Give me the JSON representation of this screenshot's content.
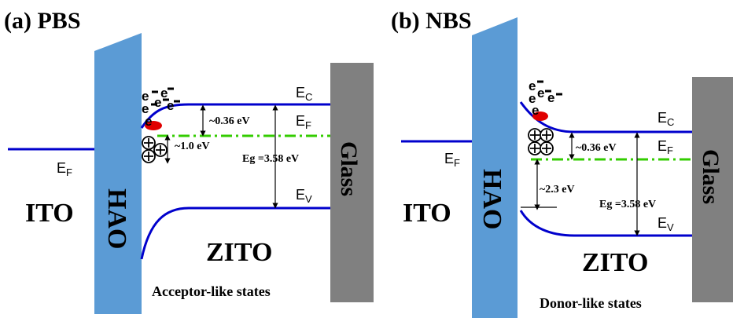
{
  "panels": [
    {
      "title": "(a) PBS",
      "left_material": "ITO",
      "insulator": "HAO",
      "semiconductor": "ZITO",
      "substrate": "Glass",
      "states": "Acceptor-like states",
      "ef_left": {
        "main": "E",
        "sub": "F"
      },
      "ec": {
        "main": "E",
        "sub": "C"
      },
      "ef": {
        "main": "E",
        "sub": "F"
      },
      "ev": {
        "main": "E",
        "sub": "V"
      },
      "gap_labels": [
        "~0.36 eV",
        "~1.0 eV"
      ],
      "eg": "Eg =3.58 eV"
    },
    {
      "title": "(b) NBS",
      "left_material": "ITO",
      "insulator": "HAO",
      "semiconductor": "ZITO",
      "substrate": "Glass",
      "states": "Donor-like states",
      "ef_left": {
        "main": "E",
        "sub": "F"
      },
      "ec": {
        "main": "E",
        "sub": "C"
      },
      "ef": {
        "main": "E",
        "sub": "F"
      },
      "ev": {
        "main": "E",
        "sub": "V"
      },
      "gap_labels": [
        "~0.36 eV",
        "~2.3 eV"
      ],
      "eg": "Eg =3.58 eV"
    }
  ],
  "electron_symbol": "e"
}
